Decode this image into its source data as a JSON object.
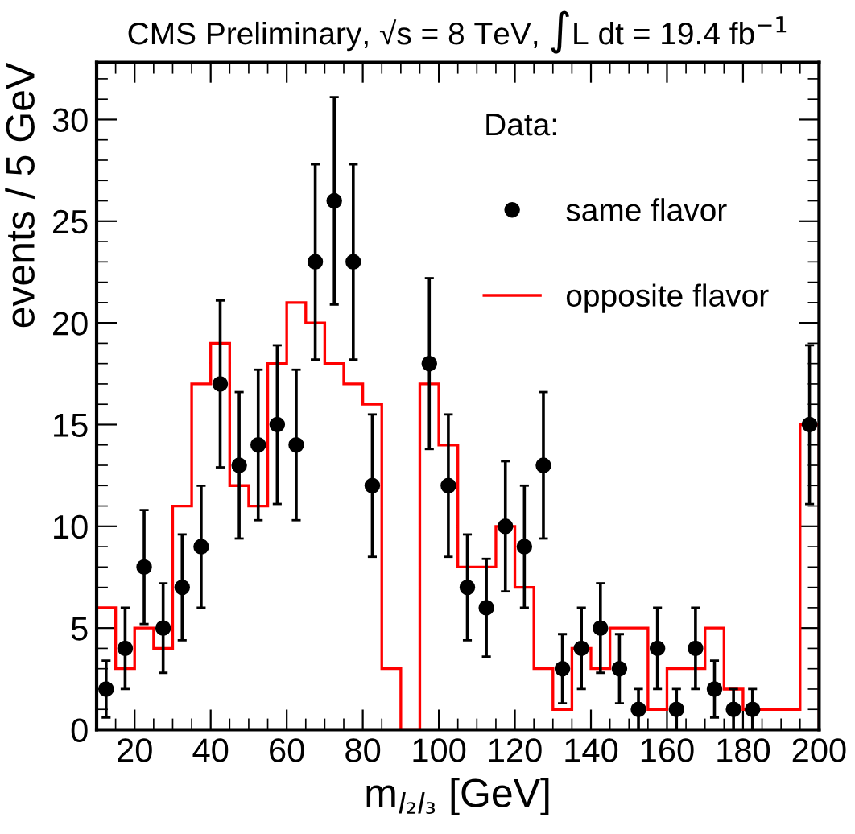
{
  "chart_data": {
    "type": "scatter",
    "title": "CMS Preliminary, √s = 8 TeV, ∫L dt = 19.4 fb$^{−1}$",
    "xlabel": "m$_{l₂l₃}$ [GeV]",
    "ylabel": "events / 5 GeV",
    "legend_title": "Data:",
    "legend": "top right",
    "grid": false,
    "xlim": [
      10,
      200
    ],
    "xticks": [
      20,
      40,
      60,
      80,
      100,
      120,
      140,
      160,
      180,
      200
    ],
    "ylim": [
      0,
      32.8
    ],
    "yticks": [
      0,
      5,
      10,
      15,
      20,
      25,
      30
    ],
    "series": [
      {
        "name": "same flavor",
        "color": "#000000",
        "marker": "circle",
        "x": [
          12.5,
          17.5,
          22.5,
          27.5,
          32.5,
          37.5,
          42.5,
          47.5,
          52.5,
          57.5,
          62.5,
          67.5,
          72.5,
          77.5,
          82.5,
          87.5,
          92.5,
          97.5,
          102.5,
          107.5,
          112.5,
          117.5,
          122.5,
          127.5,
          132.5,
          137.5,
          142.5,
          147.5,
          152.5,
          157.5,
          162.5,
          167.5,
          172.5,
          177.5,
          182.5,
          187.5,
          192.5,
          197.5
        ],
        "values": [
          2,
          4,
          8,
          5,
          7,
          9,
          17,
          13,
          14,
          15,
          14,
          23,
          26,
          23,
          12,
          null,
          null,
          18,
          12,
          7,
          6,
          10,
          9,
          13,
          3,
          4,
          5,
          3,
          1,
          4,
          1,
          4,
          2,
          1,
          1,
          null,
          null,
          15
        ],
        "errors": [
          1.4,
          2,
          2.8,
          2.2,
          2.6,
          3,
          4.1,
          3.6,
          3.7,
          3.9,
          3.7,
          4.8,
          5.1,
          4.8,
          3.5,
          null,
          null,
          4.2,
          3.5,
          2.6,
          2.4,
          3.2,
          3,
          3.6,
          1.7,
          2,
          2.2,
          1.7,
          1,
          2,
          1,
          2,
          1.4,
          1,
          1,
          null,
          null,
          3.9
        ]
      },
      {
        "name": "opposite flavor",
        "type": "histogram",
        "color": "#ff0000",
        "bins": [
          10,
          15,
          20,
          25,
          30,
          35,
          40,
          45,
          50,
          55,
          60,
          65,
          70,
          75,
          80,
          85,
          90,
          95,
          100,
          105,
          110,
          115,
          120,
          125,
          130,
          135,
          140,
          145,
          150,
          155,
          160,
          165,
          170,
          175,
          180,
          185,
          190,
          195,
          200
        ],
        "values": [
          6,
          3,
          5,
          4,
          11,
          17,
          19,
          12,
          11,
          18,
          21,
          20,
          18,
          17,
          16,
          3,
          0,
          17,
          14,
          8,
          8,
          10,
          7,
          3,
          1,
          4,
          3,
          5,
          5,
          1,
          3,
          3,
          5,
          2,
          1,
          1,
          1,
          15
        ]
      }
    ]
  }
}
